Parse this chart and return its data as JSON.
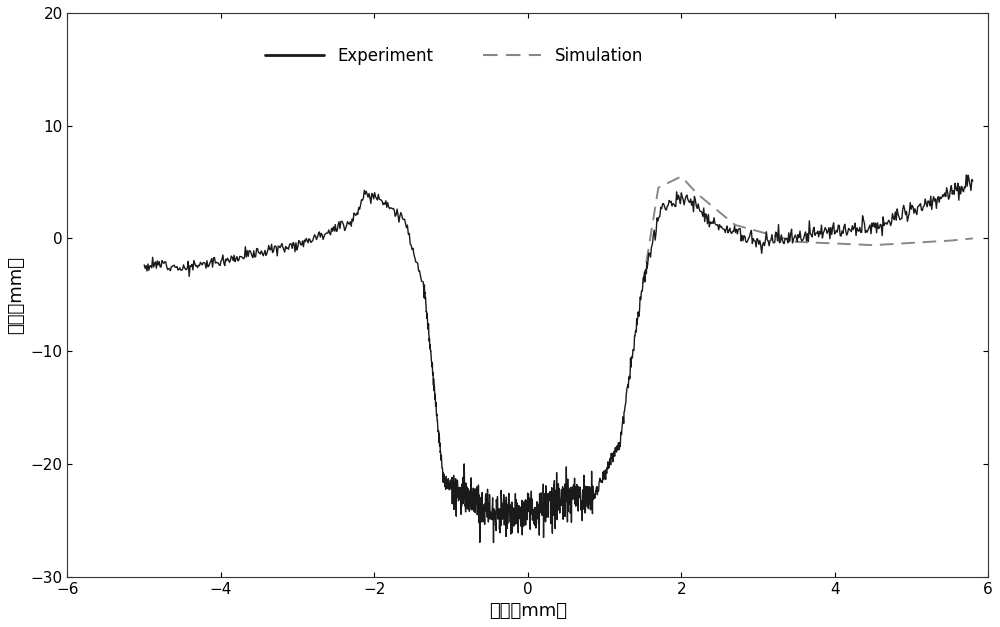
{
  "title": "",
  "xlabel": "径向（mm）",
  "ylabel": "崔深（mm）",
  "xlim": [
    -6,
    6
  ],
  "ylim": [
    -30,
    20
  ],
  "xticks": [
    -6,
    -4,
    -2,
    0,
    2,
    4,
    6
  ],
  "yticks": [
    -30,
    -20,
    -10,
    0,
    10,
    20
  ],
  "experiment_color": "#1a1a1a",
  "simulation_color": "#888888",
  "background_color": "#ffffff",
  "legend_labels": [
    "Experiment",
    "Simulation"
  ],
  "figsize": [
    10.0,
    6.27
  ],
  "dpi": 100
}
